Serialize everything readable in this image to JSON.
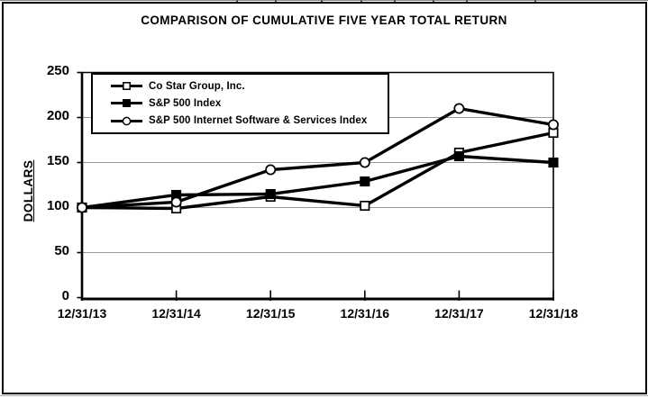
{
  "chart_data": {
    "type": "line",
    "title": "COMPARISON OF CUMULATIVE FIVE YEAR TOTAL RETURN",
    "ylabel": "DOLLARS",
    "xlabel": "",
    "categories": [
      "12/31/13",
      "12/31/14",
      "12/31/15",
      "12/31/16",
      "12/31/17",
      "12/31/18"
    ],
    "series": [
      {
        "name": "Co Star Group, Inc.",
        "marker": "open-square",
        "color": "#000000",
        "values": [
          100,
          99,
          112,
          102,
          161,
          183
        ]
      },
      {
        "name": "S&P 500 Index",
        "marker": "filled-square",
        "color": "#000000",
        "values": [
          100,
          114,
          115,
          129,
          157,
          150
        ]
      },
      {
        "name": "S&P 500 Internet Software & Services Index",
        "marker": "open-circle",
        "color": "#000000",
        "values": [
          100,
          106,
          142,
          150,
          210,
          192
        ]
      }
    ],
    "ylim": [
      0,
      250
    ],
    "y_ticks": [
      0,
      50,
      100,
      150,
      200,
      250
    ],
    "grid": "horizontal-major",
    "gridline_color": "#9a9a9a",
    "axis_color": "#000000",
    "background": "#ffffff",
    "legend_position": "top-left-inside"
  }
}
